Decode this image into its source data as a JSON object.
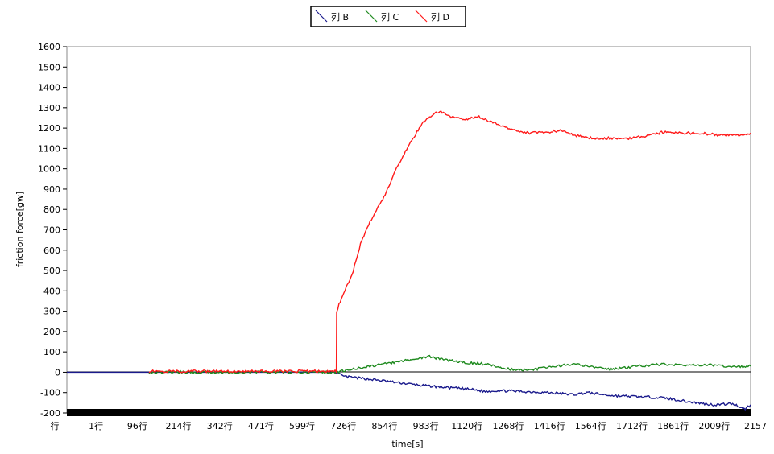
{
  "chart_data": {
    "type": "line",
    "title": "",
    "xlabel": "time[s]",
    "ylabel": "friction force[gw]",
    "xlim": [
      0,
      2157
    ],
    "ylim": [
      -200,
      1600
    ],
    "yticks": [
      -200,
      -100,
      0,
      100,
      200,
      300,
      400,
      500,
      600,
      700,
      800,
      900,
      1000,
      1100,
      1200,
      1300,
      1400,
      1500,
      1600
    ],
    "xtick_labels": [
      "行",
      "1行",
      "96行",
      "214行",
      "342行",
      "471行",
      "599行",
      "726行",
      "854行",
      "983行",
      "1120行",
      "1268行",
      "1416行",
      "1564行",
      "1712行",
      "1861行",
      "2009行",
      "2157"
    ],
    "legend_position": "top",
    "grid": false,
    "series": [
      {
        "name": "列 B",
        "color": "#1a1a8c",
        "points": [
          [
            0,
            0
          ],
          [
            850,
            0
          ],
          [
            870,
            -20
          ],
          [
            960,
            -35
          ],
          [
            1040,
            -50
          ],
          [
            1120,
            -65
          ],
          [
            1200,
            -75
          ],
          [
            1280,
            -85
          ],
          [
            1320,
            -95
          ],
          [
            1360,
            -90
          ],
          [
            1440,
            -95
          ],
          [
            1520,
            -100
          ],
          [
            1600,
            -110
          ],
          [
            1640,
            -100
          ],
          [
            1720,
            -115
          ],
          [
            1800,
            -120
          ],
          [
            1880,
            -125
          ],
          [
            1960,
            -145
          ],
          [
            2040,
            -160
          ],
          [
            2100,
            -155
          ],
          [
            2140,
            -180
          ],
          [
            2157,
            -160
          ]
        ]
      },
      {
        "name": "列 C",
        "color": "#1e8a1e",
        "points": [
          [
            259,
            0
          ],
          [
            850,
            0
          ],
          [
            900,
            15
          ],
          [
            960,
            30
          ],
          [
            1040,
            50
          ],
          [
            1100,
            65
          ],
          [
            1140,
            78
          ],
          [
            1180,
            65
          ],
          [
            1240,
            50
          ],
          [
            1320,
            40
          ],
          [
            1400,
            15
          ],
          [
            1460,
            10
          ],
          [
            1520,
            25
          ],
          [
            1600,
            40
          ],
          [
            1660,
            25
          ],
          [
            1720,
            15
          ],
          [
            1800,
            30
          ],
          [
            1880,
            40
          ],
          [
            1960,
            35
          ],
          [
            2040,
            35
          ],
          [
            2100,
            25
          ],
          [
            2157,
            30
          ]
        ]
      },
      {
        "name": "列 D",
        "color": "#ff1a1a",
        "points": [
          [
            259,
            5
          ],
          [
            400,
            5
          ],
          [
            600,
            5
          ],
          [
            850,
            5
          ],
          [
            851,
            300
          ],
          [
            870,
            380
          ],
          [
            900,
            480
          ],
          [
            930,
            650
          ],
          [
            960,
            750
          ],
          [
            1000,
            860
          ],
          [
            1040,
            1000
          ],
          [
            1080,
            1120
          ],
          [
            1120,
            1220
          ],
          [
            1160,
            1275
          ],
          [
            1180,
            1280
          ],
          [
            1220,
            1250
          ],
          [
            1260,
            1245
          ],
          [
            1300,
            1255
          ],
          [
            1340,
            1230
          ],
          [
            1400,
            1195
          ],
          [
            1460,
            1175
          ],
          [
            1520,
            1180
          ],
          [
            1560,
            1190
          ],
          [
            1600,
            1165
          ],
          [
            1660,
            1150
          ],
          [
            1720,
            1150
          ],
          [
            1780,
            1150
          ],
          [
            1840,
            1165
          ],
          [
            1880,
            1180
          ],
          [
            1940,
            1175
          ],
          [
            2000,
            1175
          ],
          [
            2060,
            1165
          ],
          [
            2120,
            1165
          ],
          [
            2157,
            1175
          ]
        ]
      }
    ]
  }
}
